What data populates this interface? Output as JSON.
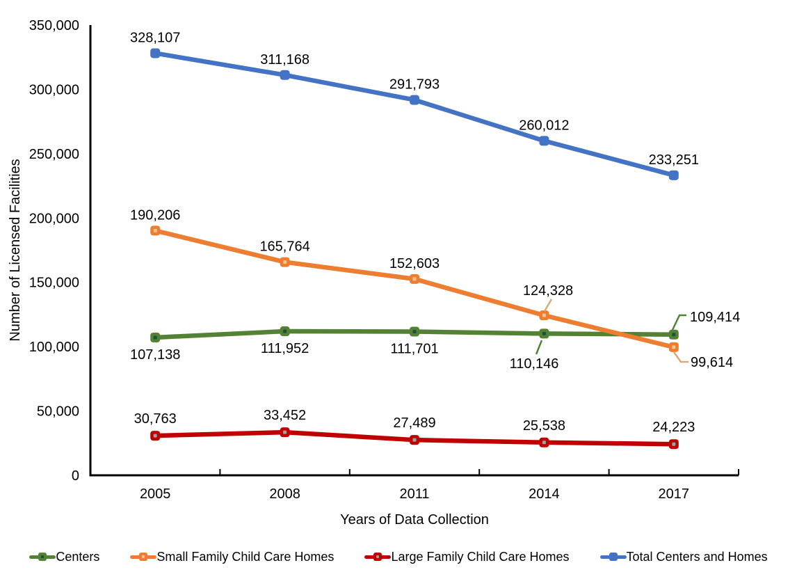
{
  "chart_data": {
    "type": "line",
    "title": "",
    "xlabel": "Years of Data Collection",
    "ylabel": "Number of Licensed Facilities",
    "categories": [
      "2005",
      "2008",
      "2011",
      "2014",
      "2017"
    ],
    "ylim": [
      0,
      350000
    ],
    "ytick_interval": 50000,
    "ytick_labels": [
      "0",
      "50,000",
      "100,000",
      "150,000",
      "200,000",
      "250,000",
      "300,000",
      "350,000"
    ],
    "grid": false,
    "legend_position": "bottom",
    "axis_color": "#000000",
    "label_color": "#000000",
    "series": [
      {
        "name": "Centers",
        "color": "#548235",
        "values": [
          107138,
          111952,
          111701,
          110146,
          109414
        ],
        "labels": [
          "107,138",
          "111,952",
          "111,701",
          "110,146",
          "109,414"
        ]
      },
      {
        "name": "Small Family Child Care Homes",
        "color": "#ED7D31",
        "values": [
          190206,
          165764,
          152603,
          124328,
          99614
        ],
        "labels": [
          "190,206",
          "165,764",
          "152,603",
          "124,328",
          "99,614"
        ]
      },
      {
        "name": "Large Family Child Care Homes",
        "color": "#C00000",
        "values": [
          30763,
          33452,
          27489,
          25538,
          24223
        ],
        "labels": [
          "30,763",
          "33,452",
          "27,489",
          "25,538",
          "24,223"
        ]
      },
      {
        "name": "Total Centers and Homes",
        "color": "#4472C4",
        "values": [
          328107,
          311168,
          291793,
          260012,
          233251
        ],
        "labels": [
          "328,107",
          "311,168",
          "291,793",
          "260,012",
          "233,251"
        ]
      }
    ],
    "leader_line_colors": {
      "Centers": "#548235",
      "Small Family Child Care Homes": "#D9A778"
    },
    "marker_inner_dot_colors": {
      "Centers": "#1F4E45",
      "Small Family Child Care Homes": "#F8C291",
      "Large Family Child Care Homes": "#9AA3A4",
      "Total Centers and Homes": ""
    }
  }
}
